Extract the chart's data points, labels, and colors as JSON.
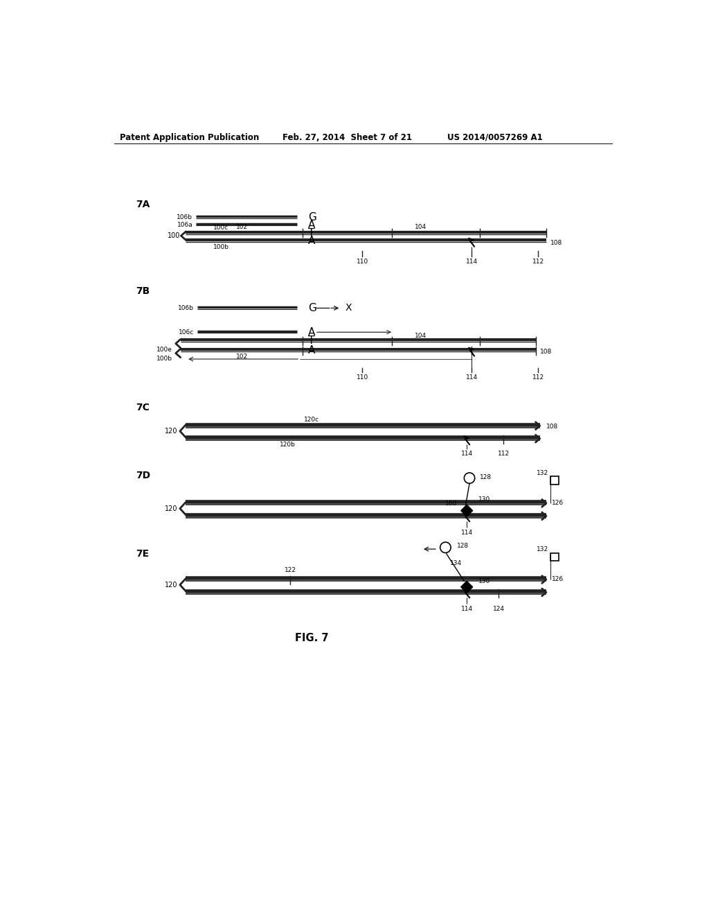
{
  "bg_color": "#ffffff",
  "text_color": "#000000",
  "header_left": "Patent Application Publication",
  "header_mid": "Feb. 27, 2014  Sheet 7 of 21",
  "header_right": "US 2014/0057269 A1",
  "fig_label": "FIG. 7",
  "line_color": "#333333"
}
